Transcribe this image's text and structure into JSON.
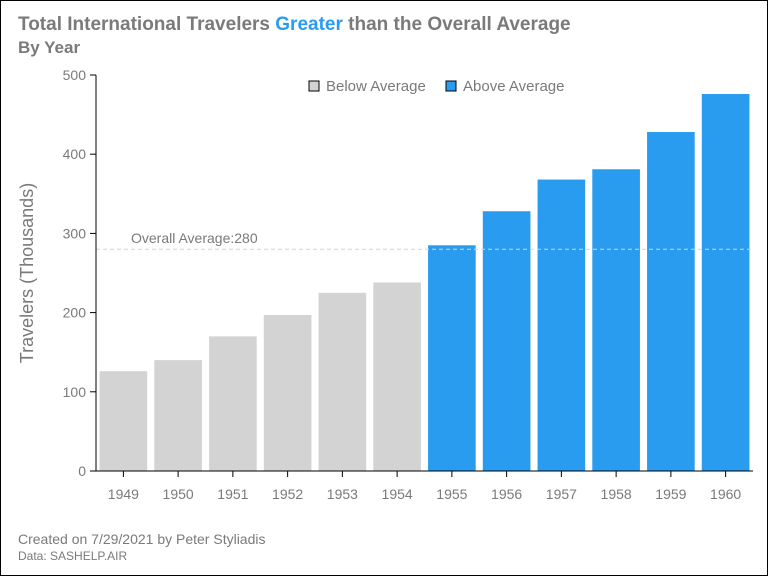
{
  "header": {
    "title_part1": "Total International Travelers ",
    "title_highlight": "Greater",
    "title_part2": " than the Overall Average",
    "subtitle": "By Year"
  },
  "footer": {
    "created": "Created on 7/29/2021 by Peter Styliadis",
    "source": "Data: SASHELP.AIR"
  },
  "colors": {
    "below": "#d3d3d3",
    "above": "#2a9cf0",
    "text": "#7a7a7a",
    "reference_line": "#c8d8e4"
  },
  "chart_data": {
    "type": "bar",
    "title": "Total International Travelers Greater than the Overall Average",
    "subtitle": "By Year",
    "xlabel": "",
    "ylabel": "Travelers (Thousands)",
    "ylim": [
      0,
      500
    ],
    "yticks": [
      0,
      100,
      200,
      300,
      400,
      500
    ],
    "categories": [
      "1949",
      "1950",
      "1951",
      "1952",
      "1953",
      "1954",
      "1955",
      "1956",
      "1957",
      "1958",
      "1959",
      "1960"
    ],
    "values": [
      126,
      140,
      170,
      197,
      225,
      238,
      285,
      328,
      368,
      381,
      428,
      476
    ],
    "groups": [
      "below",
      "below",
      "below",
      "below",
      "below",
      "below",
      "above",
      "above",
      "above",
      "above",
      "above",
      "above"
    ],
    "legend": {
      "position": "top",
      "items": [
        {
          "key": "below",
          "label": "Below Average"
        },
        {
          "key": "above",
          "label": "Above Average"
        }
      ]
    },
    "reference_line": {
      "value": 280,
      "label": "Overall Average:280"
    },
    "grid": false
  }
}
